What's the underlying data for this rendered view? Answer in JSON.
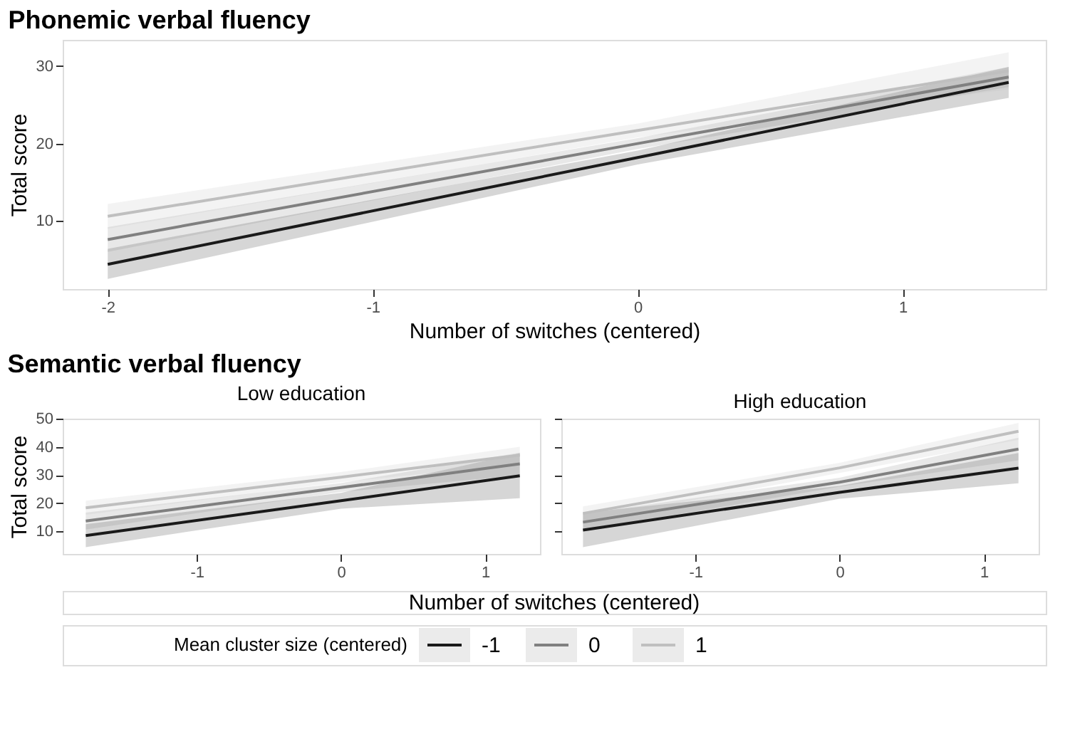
{
  "chart_data": [
    {
      "type": "line",
      "title": "Phonemic verbal fluency",
      "legend": "bottom",
      "legend_title": "Mean cluster size (centered)",
      "xlabel": "Number of switches (centered)",
      "ylabel": "Total score",
      "xlim": [
        -2.17,
        1.54
      ],
      "ylim": [
        1.2,
        33.4
      ],
      "xticks": [
        -2,
        -1,
        0,
        1
      ],
      "yticks": [
        10,
        20,
        30
      ],
      "series": [
        {
          "name": "-1",
          "color": "#1a1a1a",
          "x": [
            -2,
            0,
            1.4
          ],
          "values": [
            4.4,
            18.2,
            27.9
          ],
          "lower": [
            2.5,
            17.3,
            25.9
          ],
          "upper": [
            6.4,
            19.1,
            29.9
          ]
        },
        {
          "name": "0",
          "color": "#808080",
          "x": [
            -2,
            0,
            1.4
          ],
          "values": [
            7.6,
            20.0,
            28.6
          ],
          "lower": [
            6.0,
            19.3,
            27.3
          ],
          "upper": [
            9.2,
            20.7,
            29.9
          ]
        },
        {
          "name": "1",
          "color": "#bfbfbf",
          "x": [
            -2,
            0,
            1.4
          ],
          "values": [
            10.6,
            21.7,
            29.4
          ],
          "lower": [
            9.0,
            20.8,
            27.0
          ],
          "upper": [
            12.2,
            22.6,
            31.8
          ]
        }
      ]
    },
    {
      "type": "line",
      "title": "Semantic verbal fluency",
      "subtitle": "Low education",
      "xlabel": "Number of switches (centered)",
      "ylabel": "Total score",
      "xlim": [
        -1.93,
        1.38
      ],
      "ylim": [
        1.9,
        50
      ],
      "xticks": [
        -1,
        0,
        1
      ],
      "yticks": [
        10,
        20,
        30,
        40,
        50
      ],
      "series": [
        {
          "color": "#1a1a1a",
          "x": [
            -1.77,
            0,
            1.24
          ],
          "values": [
            8.4,
            20.8,
            29.7
          ],
          "lower": [
            4.3,
            18.0,
            21.7
          ],
          "upper": [
            12.5,
            23.6,
            37.7
          ]
        },
        {
          "color": "#808080",
          "x": [
            -1.77,
            0,
            1.24
          ],
          "values": [
            13.6,
            25.5,
            33.9
          ],
          "lower": [
            10.6,
            23.9,
            29.9
          ],
          "upper": [
            16.6,
            27.1,
            37.9
          ]
        },
        {
          "color": "#bfbfbf",
          "x": [
            -1.77,
            0,
            1.24
          ],
          "values": [
            18.3,
            29.2,
            37.0
          ],
          "lower": [
            15.8,
            27.4,
            34.0
          ],
          "upper": [
            20.8,
            31.0,
            40.0
          ]
        }
      ]
    },
    {
      "type": "line",
      "subtitle": "High education",
      "xlim": [
        -1.93,
        1.38
      ],
      "ylim": [
        1.9,
        50
      ],
      "xticks": [
        -1,
        0,
        1
      ],
      "yticks": [
        10,
        20,
        30,
        40,
        50
      ],
      "tick_labels": "x",
      "series": [
        {
          "color": "#1a1a1a",
          "x": [
            -1.78,
            0,
            1.24
          ],
          "values": [
            10.4,
            23.8,
            32.4
          ],
          "lower": [
            4.3,
            21.5,
            27.0
          ],
          "upper": [
            16.5,
            26.1,
            37.8
          ]
        },
        {
          "color": "#808080",
          "x": [
            -1.78,
            0,
            1.24
          ],
          "values": [
            13.2,
            27.4,
            39.2
          ],
          "lower": [
            10.2,
            25.8,
            35.2
          ],
          "upper": [
            16.2,
            29.0,
            43.2
          ]
        },
        {
          "color": "#bfbfbf",
          "x": [
            -1.78,
            0,
            1.24
          ],
          "values": [
            16.3,
            32.5,
            45.5
          ],
          "lower": [
            13.8,
            30.7,
            42.5
          ],
          "upper": [
            18.8,
            34.3,
            48.5
          ]
        }
      ]
    }
  ]
}
